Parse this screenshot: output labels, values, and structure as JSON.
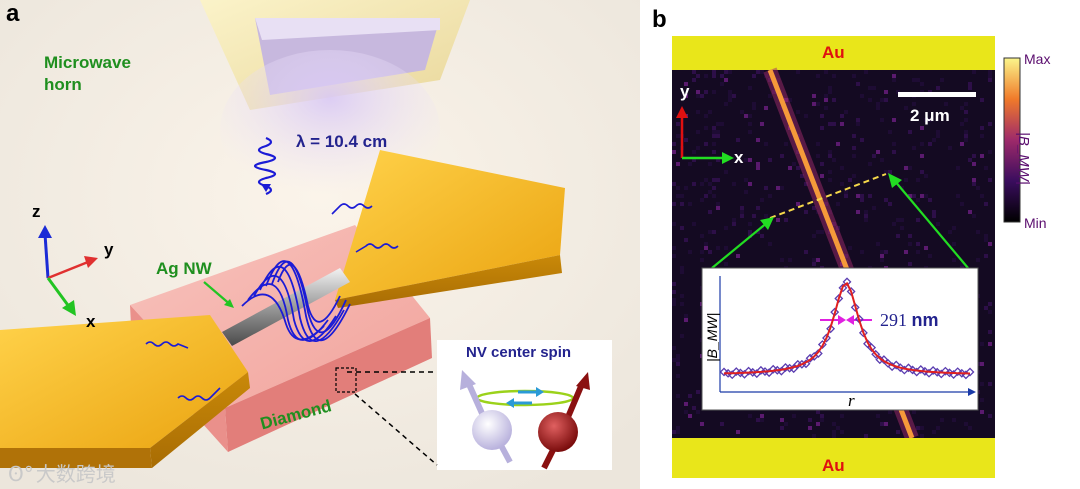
{
  "panel_a": {
    "letter": "a",
    "microwave_horn": "Microwave\nhorn",
    "wavelength": "λ = 10.4 cm",
    "ag_nw": "Ag NW",
    "diamond": "Diamond",
    "nv_center_spin": "NV center spin",
    "axes": {
      "z": "z",
      "y": "y",
      "x": "x"
    }
  },
  "panel_b": {
    "letter": "b",
    "au_top": "Au",
    "au_bottom": "Au",
    "scale_bar": "2 μm",
    "axes": {
      "y": "y",
      "x": "x"
    },
    "colorbar": {
      "max": "Max",
      "min": "Min",
      "label": "|B_MW|"
    },
    "inset": {
      "fwhm_value": "291",
      "fwhm_unit": "nm",
      "ylabel": "|B_MW|",
      "xlabel": "r"
    }
  },
  "watermark": "大数跨境",
  "colors": {
    "gold": "#f2b318",
    "gold_pad": "#e9e61a",
    "diamond": "#f3a9a6",
    "au_text": "#e01010",
    "green_label": "#1f8f1f",
    "wave_blue": "#1b1bd6",
    "colormap_max": "#fbf58b",
    "colormap_min": "#000000"
  }
}
